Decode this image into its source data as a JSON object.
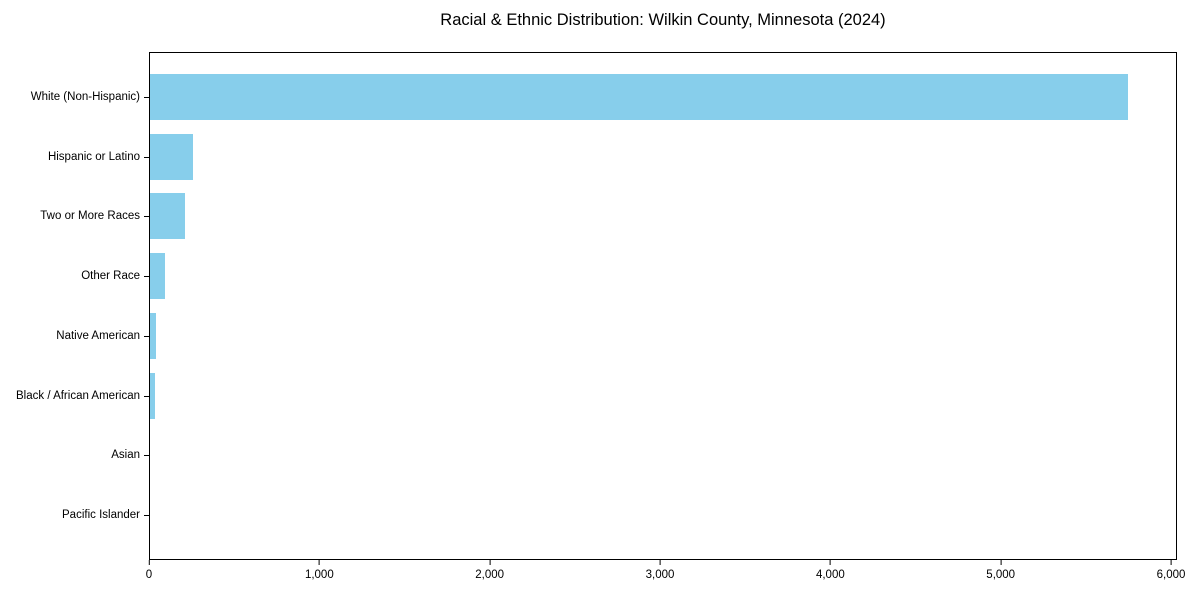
{
  "chart_data": {
    "type": "bar",
    "orientation": "horizontal",
    "title": "Racial & Ethnic Distribution: Wilkin County, Minnesota (2024)",
    "xlabel": "",
    "ylabel": "",
    "categories": [
      "White (Non-Hispanic)",
      "Hispanic or Latino",
      "Two or More Races",
      "Other Race",
      "Native American",
      "Black / African American",
      "Asian",
      "Pacific Islander"
    ],
    "values": [
      5750,
      255,
      205,
      90,
      34,
      27,
      4,
      1
    ],
    "bar_color": "#87CEEB",
    "axis_color": "#000000",
    "text_color": "#000000",
    "background_color": "#ffffff",
    "xlim": [
      0,
      6035
    ],
    "x_tick_values": [
      0,
      1000,
      2000,
      3000,
      4000,
      5000,
      6000
    ],
    "x_tick_labels": [
      "0",
      "1,000",
      "2,000",
      "3,000",
      "4,000",
      "5,000",
      "6,000"
    ],
    "grid": false,
    "legend": null
  }
}
